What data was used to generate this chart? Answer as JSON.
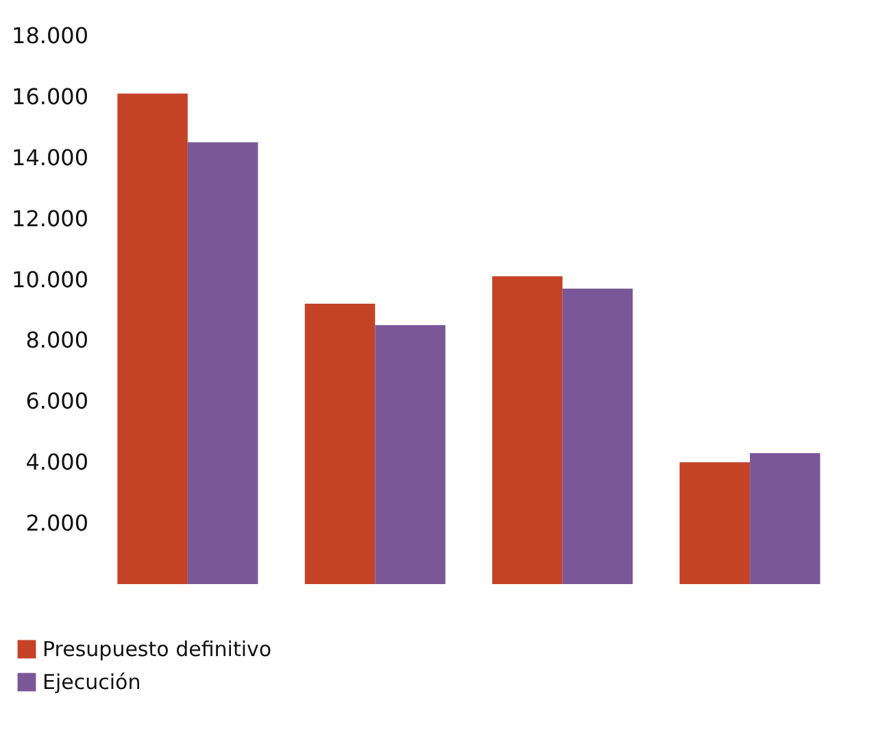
{
  "chart_data": {
    "type": "bar",
    "categories": [
      null,
      null,
      null,
      null
    ],
    "series": [
      {
        "name": "Presupuesto definitivo",
        "color": "#c44327",
        "values": [
          16100,
          9200,
          10100,
          4000
        ]
      },
      {
        "name": "Ejecución",
        "color": "#7a5898",
        "values": [
          14500,
          8500,
          9700,
          4300
        ]
      }
    ],
    "ylim": [
      0,
      18000
    ],
    "yticks": [
      {
        "value": 2000,
        "label": "2.000"
      },
      {
        "value": 4000,
        "label": "4.000"
      },
      {
        "value": 6000,
        "label": "6.000"
      },
      {
        "value": 8000,
        "label": "8.000"
      },
      {
        "value": 10000,
        "label": "10.000"
      },
      {
        "value": 12000,
        "label": "12.000"
      },
      {
        "value": 14000,
        "label": "14.000"
      },
      {
        "value": 16000,
        "label": "16.000"
      },
      {
        "value": 18000,
        "label": "18.000"
      }
    ],
    "grid": false,
    "legend": "bottom left",
    "tick_labels": "y"
  }
}
